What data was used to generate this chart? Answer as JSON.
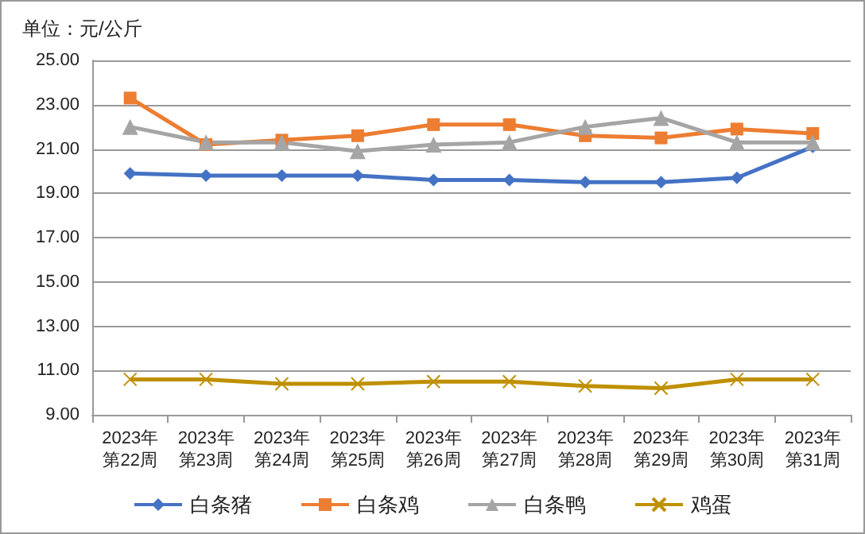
{
  "chart_data": {
    "type": "line",
    "title": "单位：元/公斤",
    "categories": [
      "2023年第22周",
      "2023年第23周",
      "2023年第24周",
      "2023年第25周",
      "2023年第26周",
      "2023年第27周",
      "2023年第28周",
      "2023年第29周",
      "2023年第30周",
      "2023年第31周"
    ],
    "series": [
      {
        "name": "白条猪",
        "color": "#4472c4",
        "marker": "diamond",
        "values": [
          19.9,
          19.8,
          19.8,
          19.8,
          19.6,
          19.6,
          19.5,
          19.5,
          19.7,
          21.1
        ]
      },
      {
        "name": "白条鸡",
        "color": "#ed7d31",
        "marker": "square",
        "values": [
          23.3,
          21.2,
          21.4,
          21.6,
          22.1,
          22.1,
          21.6,
          21.5,
          21.9,
          21.7
        ]
      },
      {
        "name": "白条鸭",
        "color": "#a5a5a5",
        "marker": "triangle",
        "values": [
          22.0,
          21.3,
          21.3,
          20.9,
          21.2,
          21.3,
          22.0,
          22.4,
          21.3,
          21.3
        ]
      },
      {
        "name": "鸡蛋",
        "color": "#bf9000",
        "marker": "cross",
        "values": [
          10.6,
          10.6,
          10.4,
          10.4,
          10.5,
          10.5,
          10.3,
          10.2,
          10.6,
          10.6
        ]
      }
    ],
    "ylim": [
      9,
      25
    ],
    "yticks": [
      {
        "value": 9,
        "label": "9.00"
      },
      {
        "value": 11,
        "label": "11.00"
      },
      {
        "value": 13,
        "label": "13.00"
      },
      {
        "value": 15,
        "label": "15.00"
      },
      {
        "value": 17,
        "label": "17.00"
      },
      {
        "value": 19,
        "label": "19.00"
      },
      {
        "value": 21,
        "label": "21.00"
      },
      {
        "value": 23,
        "label": "23.00"
      },
      {
        "value": 25,
        "label": "25.00"
      }
    ],
    "grid": "y",
    "legend": "bottom"
  }
}
